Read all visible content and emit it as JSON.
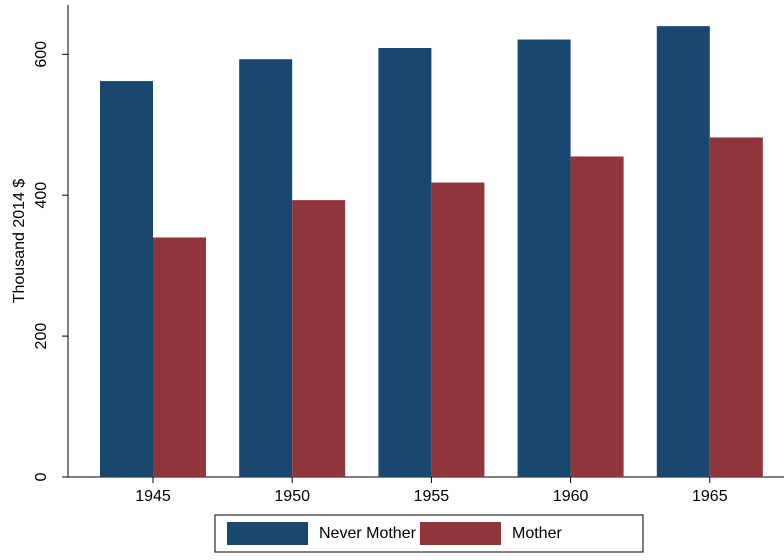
{
  "chart_data": {
    "type": "bar",
    "y_label": "Thousand 2014 $",
    "categories": [
      "1945",
      "1950",
      "1955",
      "1960",
      "1965"
    ],
    "series": [
      {
        "name": "Never Mother",
        "color": "#1a476f",
        "values": [
          562,
          593,
          609,
          621,
          640
        ]
      },
      {
        "name": "Mother",
        "color": "#90353b",
        "values": [
          340,
          393,
          418,
          455,
          482
        ]
      }
    ],
    "ylim": [
      0,
      670
    ],
    "yticks": [
      0,
      200,
      400,
      600
    ],
    "grid": false,
    "legend": "bottom"
  }
}
